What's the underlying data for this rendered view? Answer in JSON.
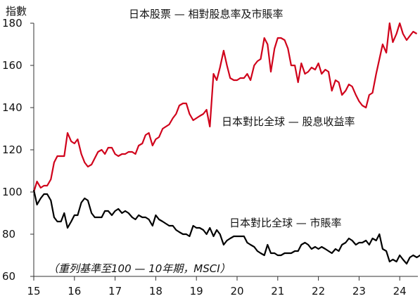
{
  "chart_data": {
    "type": "line",
    "title": "日本股票 — 相對股息率及市賬率",
    "ylabel": "指數",
    "note": "（重列基準至100 — 10年期，MSCI）",
    "ylim": [
      60,
      180
    ],
    "yticks": [
      180,
      160,
      140,
      120,
      100,
      80,
      60
    ],
    "xlim": [
      2015,
      2024.9
    ],
    "x_tick_values": [
      2015,
      2016,
      2017,
      2018,
      2019,
      2020,
      2021,
      2022,
      2023,
      2024
    ],
    "x_tick_labels": [
      "15",
      "16",
      "17",
      "18",
      "19",
      "20",
      "21",
      "22",
      "23",
      "24"
    ],
    "grid": false,
    "series": [
      {
        "name": "日本對比全球 — 股息收益率",
        "color": "#d0021b",
        "points": [
          [
            2015.0,
            100
          ],
          [
            2015.08,
            105
          ],
          [
            2015.17,
            102
          ],
          [
            2015.25,
            103
          ],
          [
            2015.33,
            103
          ],
          [
            2015.42,
            106
          ],
          [
            2015.5,
            114
          ],
          [
            2015.58,
            117
          ],
          [
            2015.67,
            117
          ],
          [
            2015.75,
            117
          ],
          [
            2015.83,
            128
          ],
          [
            2015.92,
            124
          ],
          [
            2016.0,
            123
          ],
          [
            2016.08,
            125
          ],
          [
            2016.17,
            118
          ],
          [
            2016.25,
            114
          ],
          [
            2016.33,
            112
          ],
          [
            2016.42,
            113
          ],
          [
            2016.5,
            116
          ],
          [
            2016.58,
            119
          ],
          [
            2016.67,
            120
          ],
          [
            2016.75,
            118
          ],
          [
            2016.83,
            121
          ],
          [
            2016.92,
            121
          ],
          [
            2017.0,
            118
          ],
          [
            2017.08,
            117
          ],
          [
            2017.17,
            118
          ],
          [
            2017.25,
            118
          ],
          [
            2017.33,
            119
          ],
          [
            2017.42,
            119
          ],
          [
            2017.5,
            118
          ],
          [
            2017.58,
            122
          ],
          [
            2017.67,
            123
          ],
          [
            2017.75,
            127
          ],
          [
            2017.83,
            128
          ],
          [
            2017.92,
            122
          ],
          [
            2018.0,
            125
          ],
          [
            2018.08,
            126
          ],
          [
            2018.17,
            130
          ],
          [
            2018.25,
            131
          ],
          [
            2018.33,
            132
          ],
          [
            2018.42,
            135
          ],
          [
            2018.5,
            137
          ],
          [
            2018.58,
            141
          ],
          [
            2018.67,
            142
          ],
          [
            2018.75,
            142
          ],
          [
            2018.83,
            137
          ],
          [
            2018.92,
            134
          ],
          [
            2019.0,
            135
          ],
          [
            2019.08,
            136
          ],
          [
            2019.17,
            137
          ],
          [
            2019.25,
            139
          ],
          [
            2019.33,
            131
          ],
          [
            2019.42,
            156
          ],
          [
            2019.5,
            153
          ],
          [
            2019.58,
            159
          ],
          [
            2019.67,
            167
          ],
          [
            2019.75,
            160
          ],
          [
            2019.83,
            154
          ],
          [
            2019.92,
            153
          ],
          [
            2020.0,
            153
          ],
          [
            2020.08,
            154
          ],
          [
            2020.17,
            154
          ],
          [
            2020.25,
            156
          ],
          [
            2020.33,
            153
          ],
          [
            2020.42,
            160
          ],
          [
            2020.5,
            162
          ],
          [
            2020.58,
            163
          ],
          [
            2020.67,
            173
          ],
          [
            2020.75,
            170
          ],
          [
            2020.83,
            157
          ],
          [
            2020.92,
            168
          ],
          [
            2021.0,
            173
          ],
          [
            2021.08,
            173
          ],
          [
            2021.17,
            172
          ],
          [
            2021.25,
            168
          ],
          [
            2021.33,
            160
          ],
          [
            2021.42,
            160
          ],
          [
            2021.5,
            152
          ],
          [
            2021.58,
            161
          ],
          [
            2021.67,
            156
          ],
          [
            2021.75,
            157
          ],
          [
            2021.83,
            159
          ],
          [
            2021.92,
            158
          ],
          [
            2022.0,
            161
          ],
          [
            2022.08,
            156
          ],
          [
            2022.17,
            158
          ],
          [
            2022.25,
            157
          ],
          [
            2022.33,
            148
          ],
          [
            2022.42,
            153
          ],
          [
            2022.5,
            152
          ],
          [
            2022.58,
            146
          ],
          [
            2022.67,
            148
          ],
          [
            2022.75,
            151
          ],
          [
            2022.83,
            150
          ],
          [
            2022.92,
            146
          ],
          [
            2023.0,
            143
          ],
          [
            2023.08,
            141
          ],
          [
            2023.17,
            140
          ],
          [
            2023.25,
            146
          ],
          [
            2023.33,
            147
          ],
          [
            2023.42,
            156
          ],
          [
            2023.5,
            163
          ],
          [
            2023.58,
            170
          ],
          [
            2023.67,
            166
          ],
          [
            2023.75,
            180
          ],
          [
            2023.83,
            171
          ],
          [
            2023.92,
            175
          ],
          [
            2024.0,
            180
          ],
          [
            2024.08,
            175
          ],
          [
            2024.17,
            172
          ],
          [
            2024.25,
            174
          ],
          [
            2024.33,
            176
          ],
          [
            2024.42,
            175
          ]
        ]
      },
      {
        "name": "日本對比全球 — 市賬率",
        "color": "#000000",
        "points": [
          [
            2015.0,
            101
          ],
          [
            2015.08,
            94
          ],
          [
            2015.17,
            97
          ],
          [
            2015.25,
            99
          ],
          [
            2015.33,
            99
          ],
          [
            2015.42,
            96
          ],
          [
            2015.5,
            88
          ],
          [
            2015.58,
            86
          ],
          [
            2015.67,
            86
          ],
          [
            2015.75,
            90
          ],
          [
            2015.83,
            83
          ],
          [
            2015.92,
            86
          ],
          [
            2016.0,
            89
          ],
          [
            2016.08,
            89
          ],
          [
            2016.17,
            95
          ],
          [
            2016.25,
            97
          ],
          [
            2016.33,
            96
          ],
          [
            2016.42,
            90
          ],
          [
            2016.5,
            88
          ],
          [
            2016.58,
            88
          ],
          [
            2016.67,
            88
          ],
          [
            2016.75,
            91
          ],
          [
            2016.83,
            91
          ],
          [
            2016.92,
            89
          ],
          [
            2017.0,
            91
          ],
          [
            2017.08,
            92
          ],
          [
            2017.17,
            90
          ],
          [
            2017.25,
            91
          ],
          [
            2017.33,
            90
          ],
          [
            2017.42,
            88
          ],
          [
            2017.5,
            87
          ],
          [
            2017.58,
            89
          ],
          [
            2017.67,
            88
          ],
          [
            2017.75,
            88
          ],
          [
            2017.83,
            87
          ],
          [
            2017.92,
            84
          ],
          [
            2018.0,
            89
          ],
          [
            2018.08,
            87
          ],
          [
            2018.17,
            86
          ],
          [
            2018.25,
            85
          ],
          [
            2018.33,
            84
          ],
          [
            2018.42,
            84
          ],
          [
            2018.5,
            82
          ],
          [
            2018.58,
            81
          ],
          [
            2018.67,
            80
          ],
          [
            2018.75,
            80
          ],
          [
            2018.83,
            79
          ],
          [
            2018.92,
            84
          ],
          [
            2019.0,
            83
          ],
          [
            2019.08,
            83
          ],
          [
            2019.17,
            82
          ],
          [
            2019.25,
            80
          ],
          [
            2019.33,
            83
          ],
          [
            2019.42,
            79
          ],
          [
            2019.5,
            82
          ],
          [
            2019.58,
            80
          ],
          [
            2019.67,
            75
          ],
          [
            2019.75,
            77
          ],
          [
            2019.83,
            78
          ],
          [
            2019.92,
            79
          ],
          [
            2020.0,
            79
          ],
          [
            2020.08,
            79
          ],
          [
            2020.17,
            79
          ],
          [
            2020.25,
            76
          ],
          [
            2020.33,
            75
          ],
          [
            2020.42,
            74
          ],
          [
            2020.5,
            72
          ],
          [
            2020.58,
            71
          ],
          [
            2020.67,
            70
          ],
          [
            2020.75,
            75
          ],
          [
            2020.83,
            71
          ],
          [
            2020.92,
            71
          ],
          [
            2021.0,
            70
          ],
          [
            2021.08,
            70
          ],
          [
            2021.17,
            71
          ],
          [
            2021.25,
            71
          ],
          [
            2021.33,
            71
          ],
          [
            2021.42,
            72
          ],
          [
            2021.5,
            72
          ],
          [
            2021.58,
            75
          ],
          [
            2021.67,
            76
          ],
          [
            2021.75,
            75
          ],
          [
            2021.83,
            73
          ],
          [
            2021.92,
            74
          ],
          [
            2022.0,
            73
          ],
          [
            2022.08,
            74
          ],
          [
            2022.17,
            73
          ],
          [
            2022.25,
            72
          ],
          [
            2022.33,
            71
          ],
          [
            2022.42,
            73
          ],
          [
            2022.5,
            72
          ],
          [
            2022.58,
            75
          ],
          [
            2022.67,
            76
          ],
          [
            2022.75,
            78
          ],
          [
            2022.83,
            77
          ],
          [
            2022.92,
            75
          ],
          [
            2023.0,
            76
          ],
          [
            2023.08,
            76
          ],
          [
            2023.17,
            77
          ],
          [
            2023.25,
            75
          ],
          [
            2023.33,
            78
          ],
          [
            2023.42,
            77
          ],
          [
            2023.5,
            80
          ],
          [
            2023.58,
            73
          ],
          [
            2023.67,
            72
          ],
          [
            2023.75,
            67
          ],
          [
            2023.83,
            68
          ],
          [
            2023.92,
            67
          ],
          [
            2024.0,
            70
          ],
          [
            2024.08,
            68
          ],
          [
            2024.17,
            66
          ],
          [
            2024.25,
            69
          ],
          [
            2024.33,
            70
          ],
          [
            2024.42,
            69
          ],
          [
            2024.5,
            70
          ],
          [
            2024.58,
            70
          ],
          [
            2024.67,
            69
          ],
          [
            2024.75,
            70
          ],
          [
            2024.83,
            69
          ],
          [
            2024.9,
            70
          ]
        ]
      }
    ]
  }
}
